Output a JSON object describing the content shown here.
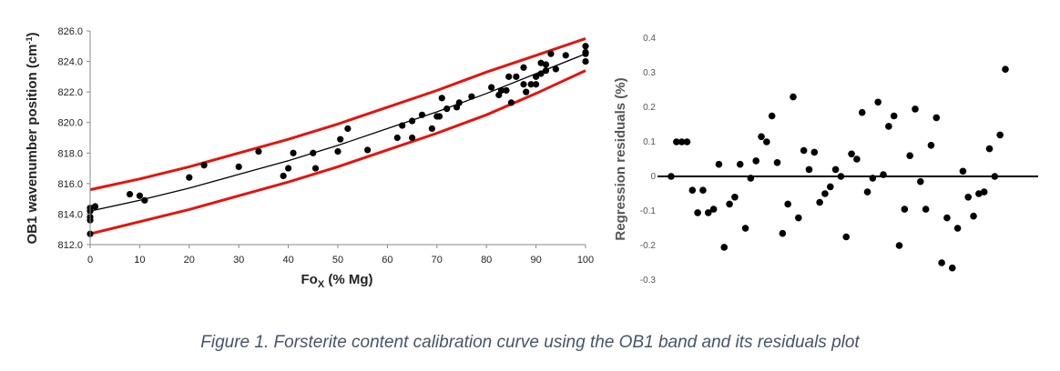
{
  "caption": "Figure 1. Forsterite content calibration curve using the OB1 band and its residuals plot",
  "chart_data": [
    {
      "type": "scatter",
      "xlabel_main": "Fo",
      "xlabel_sub": "X",
      "xlabel_unit": " (% Mg)",
      "ylabel_main": "OB1 wavenumber position (cm",
      "ylabel_sup": "-1",
      "ylabel_close": ")",
      "xlim": [
        0,
        100
      ],
      "ylim": [
        812,
        826
      ],
      "xticks": [
        "0",
        "10",
        "20",
        "30",
        "40",
        "50",
        "60",
        "70",
        "80",
        "90",
        "100"
      ],
      "yticks": [
        "812.0",
        "814.0",
        "816.0",
        "818.0",
        "820.0",
        "822.0",
        "824.0",
        "826.0"
      ],
      "grid": false,
      "colors": {
        "points": "#000000",
        "fit": "#000000",
        "bounds": "#e3140c"
      },
      "fit_line": {
        "x": [
          0,
          10,
          20,
          30,
          40,
          50,
          60,
          70,
          80,
          90,
          100
        ],
        "y": [
          814.2,
          814.9,
          815.7,
          816.6,
          817.5,
          818.5,
          819.6,
          820.7,
          821.9,
          823.2,
          824.5
        ]
      },
      "upper_bound": {
        "x": [
          0,
          10,
          20,
          30,
          40,
          50,
          60,
          70,
          80,
          90,
          100
        ],
        "y": [
          815.6,
          816.3,
          817.1,
          818.0,
          818.9,
          819.9,
          821.0,
          822.1,
          823.3,
          824.4,
          825.5
        ]
      },
      "lower_bound": {
        "x": [
          0,
          10,
          20,
          30,
          40,
          50,
          60,
          70,
          80,
          90,
          100
        ],
        "y": [
          812.7,
          813.5,
          814.3,
          815.2,
          816.1,
          817.1,
          818.2,
          819.3,
          820.5,
          821.9,
          823.4
        ]
      },
      "points": [
        [
          0,
          812.7
        ],
        [
          0,
          813.6
        ],
        [
          0,
          813.8
        ],
        [
          0,
          814.2
        ],
        [
          0,
          814.4
        ],
        [
          1,
          814.5
        ],
        [
          8,
          815.3
        ],
        [
          10,
          815.2
        ],
        [
          11,
          814.9
        ],
        [
          20,
          816.4
        ],
        [
          23,
          817.2
        ],
        [
          30,
          817.1
        ],
        [
          34,
          818.1
        ],
        [
          39,
          816.5
        ],
        [
          40,
          817.0
        ],
        [
          41,
          818.0
        ],
        [
          45,
          818.0
        ],
        [
          45.5,
          817.0
        ],
        [
          50,
          818.1
        ],
        [
          50.5,
          818.9
        ],
        [
          52,
          819.6
        ],
        [
          56,
          818.2
        ],
        [
          62,
          819.0
        ],
        [
          63,
          819.8
        ],
        [
          65,
          819.0
        ],
        [
          65,
          820.1
        ],
        [
          67,
          820.5
        ],
        [
          69,
          819.6
        ],
        [
          70,
          820.4
        ],
        [
          70.5,
          820.4
        ],
        [
          71,
          821.6
        ],
        [
          72,
          820.9
        ],
        [
          74,
          821.0
        ],
        [
          74.5,
          821.3
        ],
        [
          77,
          821.7
        ],
        [
          81,
          822.3
        ],
        [
          82.5,
          821.8
        ],
        [
          83,
          822.1
        ],
        [
          84,
          822.1
        ],
        [
          85,
          821.3
        ],
        [
          84.5,
          823.0
        ],
        [
          86,
          823.0
        ],
        [
          87.5,
          822.5
        ],
        [
          87.5,
          823.6
        ],
        [
          88,
          822.0
        ],
        [
          89,
          822.5
        ],
        [
          90,
          822.5
        ],
        [
          90,
          823.0
        ],
        [
          91,
          823.2
        ],
        [
          91,
          823.9
        ],
        [
          92,
          823.4
        ],
        [
          92,
          823.8
        ],
        [
          93,
          824.5
        ],
        [
          94,
          823.5
        ],
        [
          96,
          824.4
        ],
        [
          100,
          824.0
        ],
        [
          100,
          824.6
        ],
        [
          100,
          825.0
        ],
        [
          100,
          824.5
        ]
      ]
    },
    {
      "type": "scatter",
      "ylabel": "Regression residuals (%)",
      "ylim": [
        -0.3,
        0.4
      ],
      "yticks": [
        "-0.3",
        "-0.2",
        "-0.1",
        "0",
        "0.1",
        "0.2",
        "0.3",
        "0.4"
      ],
      "grid": false,
      "zero_line": true,
      "colors": {
        "points": "#000000",
        "zero_line": "#000000"
      },
      "points": [
        [
          1,
          0
        ],
        [
          2,
          0.1
        ],
        [
          3,
          0.1
        ],
        [
          4,
          0.1
        ],
        [
          5,
          -0.04
        ],
        [
          6,
          -0.105
        ],
        [
          7,
          -0.04
        ],
        [
          8,
          -0.105
        ],
        [
          9,
          -0.095
        ],
        [
          10,
          0.035
        ],
        [
          11,
          -0.205
        ],
        [
          12,
          -0.08
        ],
        [
          13,
          -0.06
        ],
        [
          14,
          0.035
        ],
        [
          15,
          -0.15
        ],
        [
          16,
          -0.005
        ],
        [
          17,
          0.045
        ],
        [
          18,
          0.115
        ],
        [
          19,
          0.1
        ],
        [
          20,
          0.175
        ],
        [
          21,
          0.04
        ],
        [
          22,
          -0.165
        ],
        [
          23,
          -0.08
        ],
        [
          24,
          0.23
        ],
        [
          25,
          -0.12
        ],
        [
          26,
          0.075
        ],
        [
          27,
          0.02
        ],
        [
          28,
          0.07
        ],
        [
          29,
          -0.075
        ],
        [
          30,
          -0.05
        ],
        [
          31,
          -0.03
        ],
        [
          32,
          0.02
        ],
        [
          33,
          0
        ],
        [
          34,
          -0.175
        ],
        [
          35,
          0.065
        ],
        [
          36,
          0.05
        ],
        [
          37,
          0.185
        ],
        [
          38,
          -0.045
        ],
        [
          39,
          -0.005
        ],
        [
          40,
          0.215
        ],
        [
          41,
          0.005
        ],
        [
          42,
          0.145
        ],
        [
          43,
          0.175
        ],
        [
          44,
          -0.2
        ],
        [
          45,
          -0.095
        ],
        [
          46,
          0.06
        ],
        [
          47,
          0.195
        ],
        [
          48,
          -0.015
        ],
        [
          49,
          -0.095
        ],
        [
          50,
          0.09
        ],
        [
          51,
          0.17
        ],
        [
          52,
          -0.25
        ],
        [
          53,
          -0.12
        ],
        [
          54,
          -0.265
        ],
        [
          55,
          -0.15
        ],
        [
          56,
          0.015
        ],
        [
          57,
          -0.06
        ],
        [
          58,
          -0.115
        ],
        [
          59,
          -0.05
        ],
        [
          60,
          -0.045
        ],
        [
          61,
          0.08
        ],
        [
          62,
          0
        ],
        [
          63,
          0.12
        ],
        [
          64,
          0.31
        ]
      ]
    }
  ]
}
